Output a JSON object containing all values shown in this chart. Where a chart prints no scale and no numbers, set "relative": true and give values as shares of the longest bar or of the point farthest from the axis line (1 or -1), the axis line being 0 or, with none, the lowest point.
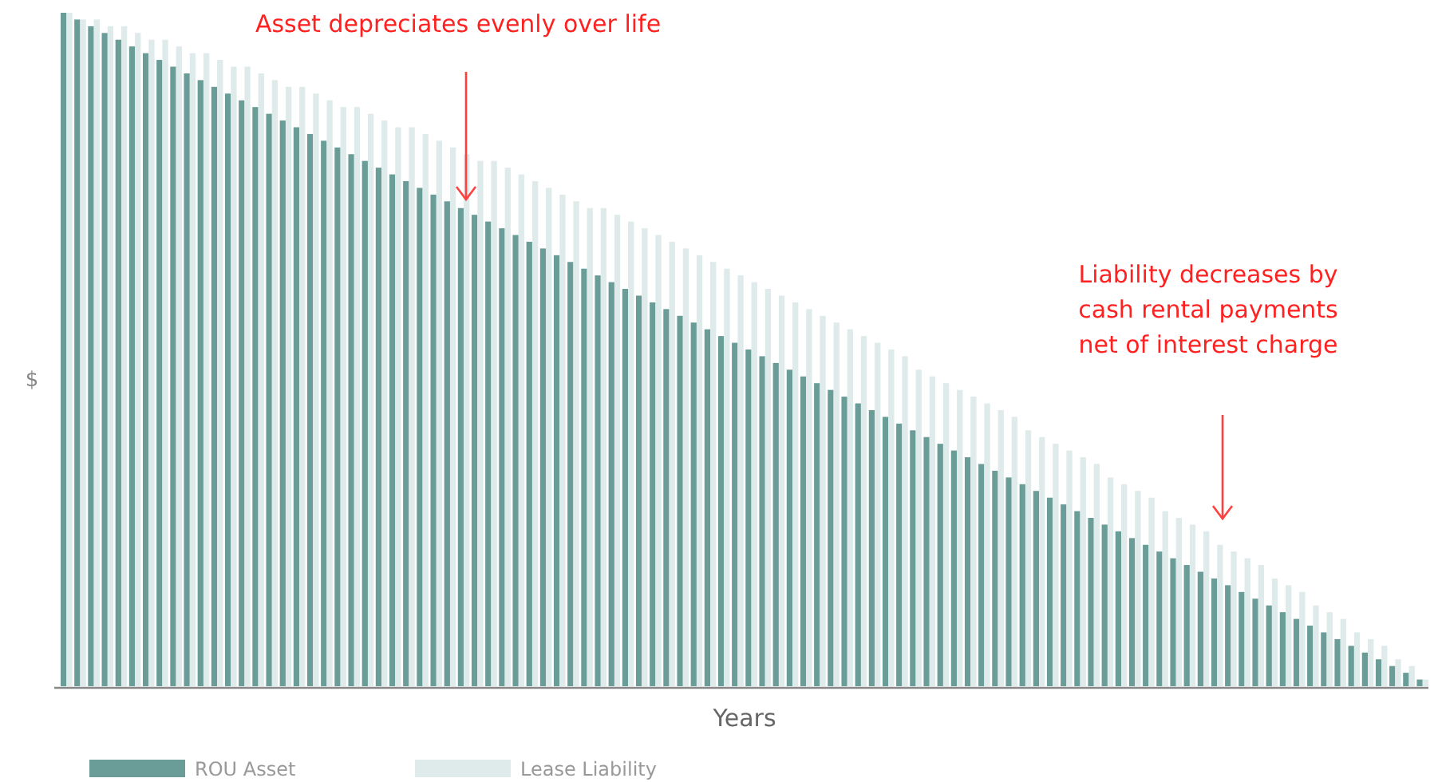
{
  "chart_data": {
    "type": "bar",
    "relative": true,
    "xlabel": "Years",
    "ylabel": "$",
    "legend": "bottom left",
    "annotations": [
      "Asset depreciates evenly over life",
      "Liability decreases by\ncash rental payments\nnet of interest charge"
    ],
    "categories": [
      null,
      null,
      null,
      null,
      null,
      null,
      null,
      null,
      null,
      null,
      null,
      null,
      null,
      null,
      null,
      null,
      null,
      null,
      null,
      null,
      null,
      null,
      null,
      null,
      null,
      null,
      null,
      null,
      null,
      null,
      null,
      null,
      null,
      null,
      null,
      null,
      null,
      null,
      null,
      null,
      null,
      null,
      null,
      null,
      null,
      null,
      null,
      null,
      null,
      null,
      null,
      null,
      null,
      null,
      null,
      null,
      null,
      null,
      null,
      null,
      null,
      null,
      null,
      null,
      null,
      null,
      null,
      null,
      null,
      null,
      null,
      null,
      null,
      null,
      null,
      null,
      null,
      null,
      null,
      null,
      null,
      null,
      null,
      null,
      null,
      null,
      null,
      null,
      null,
      null,
      null,
      null,
      null,
      null,
      null,
      null,
      null,
      null,
      null,
      null
    ],
    "series": [
      {
        "name": "ROU Asset",
        "color": "#6a9c98",
        "values": [
          1.0,
          0.99,
          0.98,
          0.97,
          0.96,
          0.95,
          0.94,
          0.93,
          0.92,
          0.91,
          0.9,
          0.89,
          0.88,
          0.87,
          0.86,
          0.85,
          0.84,
          0.83,
          0.82,
          0.81,
          0.8,
          0.79,
          0.78,
          0.77,
          0.76,
          0.75,
          0.74,
          0.73,
          0.72,
          0.71,
          0.7,
          0.69,
          0.68,
          0.67,
          0.66,
          0.65,
          0.64,
          0.63,
          0.62,
          0.61,
          0.6,
          0.59,
          0.58,
          0.57,
          0.56,
          0.55,
          0.54,
          0.53,
          0.52,
          0.51,
          0.5,
          0.49,
          0.48,
          0.47,
          0.46,
          0.45,
          0.44,
          0.43,
          0.42,
          0.41,
          0.4,
          0.39,
          0.38,
          0.37,
          0.36,
          0.35,
          0.34,
          0.33,
          0.32,
          0.31,
          0.3,
          0.29,
          0.28,
          0.27,
          0.26,
          0.25,
          0.24,
          0.23,
          0.22,
          0.21,
          0.2,
          0.19,
          0.18,
          0.17,
          0.16,
          0.15,
          0.14,
          0.13,
          0.12,
          0.11,
          0.1,
          0.09,
          0.08,
          0.07,
          0.06,
          0.05,
          0.04,
          0.03,
          0.02,
          0.01
        ]
      },
      {
        "name": "Lease Liability",
        "color": "#dfeaea",
        "values": [
          1.0,
          0.99,
          0.99,
          0.98,
          0.98,
          0.97,
          0.96,
          0.96,
          0.95,
          0.94,
          0.94,
          0.93,
          0.92,
          0.92,
          0.91,
          0.9,
          0.89,
          0.89,
          0.88,
          0.87,
          0.86,
          0.86,
          0.85,
          0.84,
          0.83,
          0.83,
          0.82,
          0.81,
          0.8,
          0.79,
          0.78,
          0.78,
          0.77,
          0.76,
          0.75,
          0.74,
          0.73,
          0.72,
          0.71,
          0.71,
          0.7,
          0.69,
          0.68,
          0.67,
          0.66,
          0.65,
          0.64,
          0.63,
          0.62,
          0.61,
          0.6,
          0.59,
          0.58,
          0.57,
          0.56,
          0.55,
          0.54,
          0.53,
          0.52,
          0.51,
          0.5,
          0.49,
          0.47,
          0.46,
          0.45,
          0.44,
          0.43,
          0.42,
          0.41,
          0.4,
          0.38,
          0.37,
          0.36,
          0.35,
          0.34,
          0.33,
          0.31,
          0.3,
          0.29,
          0.28,
          0.26,
          0.25,
          0.24,
          0.23,
          0.21,
          0.2,
          0.19,
          0.18,
          0.16,
          0.15,
          0.14,
          0.12,
          0.11,
          0.1,
          0.08,
          0.07,
          0.06,
          0.04,
          0.03,
          0.01
        ]
      }
    ]
  }
}
